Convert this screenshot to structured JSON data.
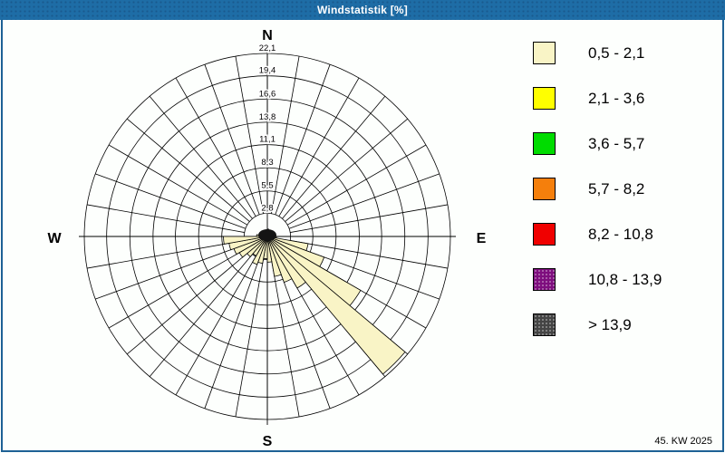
{
  "title_bar": {
    "title": "Windstatistik [%]"
  },
  "footer": {
    "week_label": "45. KW 2025"
  },
  "compass": {
    "north": "N",
    "east": "E",
    "south": "S",
    "west": "W"
  },
  "legend": {
    "entries": [
      {
        "label": "0,5 - 2,1",
        "color": "#f9f4c6",
        "dotted": false
      },
      {
        "label": "2,1 - 3,6",
        "color": "#ffff00",
        "dotted": false
      },
      {
        "label": "3,6 - 5,7",
        "color": "#00dc00",
        "dotted": false
      },
      {
        "label": "5,7 - 8,2",
        "color": "#f57f0c",
        "dotted": false
      },
      {
        "label": "8,2 - 10,8",
        "color": "#f00000",
        "dotted": false
      },
      {
        "label": "10,8 - 13,9",
        "color": "#7e0e7e",
        "dotted": true
      },
      {
        "label": " > 13,9",
        "color": "#444444",
        "dotted": true
      }
    ]
  },
  "chart_data": {
    "type": "windrose",
    "unit": "%",
    "title": "Windstatistik [%]",
    "sector_width_deg": 10,
    "max_value": 22.1,
    "ring_values": [
      2.8,
      5.5,
      8.3,
      11.1,
      13.8,
      16.6,
      19.4,
      22.1
    ],
    "ring_labels": [
      "2,8",
      "5,5",
      "8,3",
      "11,1",
      "13,8",
      "16,6",
      "19,4",
      "22,1"
    ],
    "grid": {
      "spokes_every_deg": 10,
      "rings": 8,
      "axes": [
        "N",
        "E",
        "S",
        "W"
      ]
    },
    "series": [
      {
        "name": "0,5 - 2,1",
        "color": "#f9f4c6",
        "note": "frequency % per 10-degree sector, sector i spans [i*10, i*10+10) degrees clockwise from North",
        "values": [
          0.9,
          0.7,
          0.6,
          0.5,
          0.5,
          0.5,
          0.6,
          0.7,
          0.9,
          1.1,
          5.0,
          7.3,
          13.0,
          21.7,
          7.2,
          5.9,
          4.9,
          3.1,
          2.7,
          3.3,
          3.6,
          2.7,
          3.2,
          3.9,
          4.3,
          4.7,
          5.3,
          1.3,
          1.0,
          0.8,
          0.7,
          0.6,
          0.6,
          0.6,
          0.7,
          0.8
        ]
      }
    ]
  }
}
